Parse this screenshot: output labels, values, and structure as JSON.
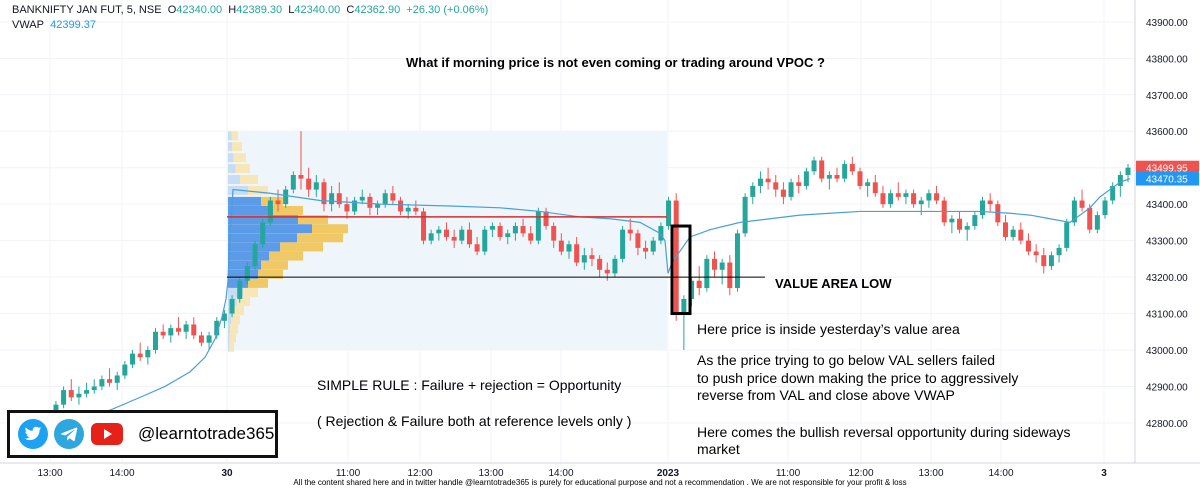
{
  "header": {
    "symbol": "BANKNIFTY JAN FUT, 5, NSE",
    "o_label": "O",
    "o_value": "42340.00",
    "h_label": "H",
    "h_value": "42389.30",
    "l_label": "L",
    "l_value": "42340.00",
    "c_label": "C",
    "c_value": "42362.90",
    "change": "+26.30 (+0.06%)",
    "vwap_label": "VWAP",
    "vwap_value": "42399.37"
  },
  "annotations": {
    "question": "What if morning price is not even coming or trading around VPOC ?",
    "val_label": "VALUE AREA LOW",
    "inside_text": "Here price is inside yesterday’s value area",
    "explain_line1": "As the price trying to go below VAL sellers failed",
    "explain_line2": "to push price down making the price to aggressively",
    "explain_line3": "reverse from VAL and close above VWAP",
    "bullish_line1": "Here comes the bullish reversal opportunity during sideways",
    "bullish_line2": "market",
    "rule": "SIMPLE RULE : Failure + rejection = Opportunity",
    "rule_note": "( Rejection & Failure both at reference levels only )"
  },
  "social": {
    "handle": "@learntotrade365",
    "icons": [
      "twitter-icon",
      "telegram-icon",
      "youtube-icon"
    ]
  },
  "footer": "All the content shared here and in twitter handle @learntotrade365 is purely for educational purpose and not a recommendation . We are not responsible for your profit & loss",
  "colors": {
    "up": "#26a69a",
    "down": "#ef5350",
    "vwap": "#4a9fd8",
    "val_line": "#000000",
    "vah_line": "#d32f2f",
    "profile_blue": "#5b9be8",
    "profile_yellow": "#f0c965",
    "value_area_bg": "#eef6fb",
    "last_price_tag": "#ef5350",
    "vwap_price_tag": "#2196f3"
  },
  "chart_data": {
    "type": "candlestick",
    "title": "",
    "ylim": [
      42690,
      43960
    ],
    "y_ticks": [
      "43900.00",
      "43800.00",
      "43700.00",
      "43600.00",
      "43500.00",
      "43400.00",
      "43300.00",
      "43200.00",
      "43100.00",
      "43000.00",
      "42900.00",
      "42800.00"
    ],
    "x_ticks": [
      "13:00",
      "14:00",
      "30",
      "11:00",
      "12:00",
      "13:00",
      "14:00",
      "2023",
      "11:00",
      "12:00",
      "13:00",
      "14:00",
      "3"
    ],
    "price_tags": [
      {
        "label": "43499.95",
        "value": 43499.95,
        "kind": "last"
      },
      {
        "label": "43470.35",
        "value": 43470.35,
        "kind": "vwap"
      }
    ],
    "levels": {
      "value_area_low": 43200,
      "value_area_high": 43365
    },
    "vwap": [
      42780,
      42780,
      42810,
      42835,
      42870,
      42900,
      42940,
      42980,
      43030,
      43090,
      43140,
      43190,
      43260,
      43440,
      43430,
      43410,
      43400,
      43395,
      43390,
      43380,
      43365,
      43360,
      43350,
      43320,
      43300,
      43210,
      43240,
      43310,
      43330,
      43350,
      43360,
      43370,
      43375,
      43380,
      43380,
      43380,
      43380,
      43375,
      43370,
      43360,
      43350,
      43390,
      43420,
      43440,
      43460,
      43470
    ],
    "vwap_x": [
      10,
      40,
      75,
      110,
      140,
      165,
      190,
      205,
      215,
      222,
      226,
      228,
      229,
      233,
      270,
      320,
      380,
      450,
      500,
      540,
      580,
      610,
      640,
      660,
      665,
      668,
      672,
      690,
      710,
      740,
      770,
      800,
      830,
      860,
      900,
      940,
      980,
      1010,
      1030,
      1050,
      1070,
      1090,
      1100,
      1110,
      1120,
      1130
    ],
    "candles": [
      [
        42790,
        42800,
        42750,
        42760
      ],
      [
        42760,
        42780,
        42740,
        42770
      ],
      [
        42770,
        42800,
        42760,
        42790
      ],
      [
        42790,
        42810,
        42770,
        42780
      ],
      [
        42780,
        42810,
        42760,
        42800
      ],
      [
        42800,
        42830,
        42790,
        42820
      ],
      [
        42820,
        42860,
        42810,
        42850
      ],
      [
        42850,
        42900,
        42840,
        42890
      ],
      [
        42890,
        42920,
        42860,
        42870
      ],
      [
        42870,
        42900,
        42850,
        42880
      ],
      [
        42880,
        42910,
        42870,
        42890
      ],
      [
        42890,
        42920,
        42880,
        42900
      ],
      [
        42900,
        42930,
        42890,
        42920
      ],
      [
        42920,
        42950,
        42900,
        42910
      ],
      [
        42910,
        42940,
        42890,
        42930
      ],
      [
        42930,
        42970,
        42920,
        42960
      ],
      [
        42960,
        43000,
        42950,
        42990
      ],
      [
        42990,
        43020,
        42970,
        42980
      ],
      [
        42980,
        43010,
        42960,
        43000
      ],
      [
        43000,
        43060,
        42990,
        43050
      ],
      [
        43050,
        43070,
        43030,
        43040
      ],
      [
        43040,
        43070,
        43020,
        43060
      ],
      [
        43060,
        43090,
        43040,
        43050
      ],
      [
        43050,
        43080,
        43030,
        43070
      ],
      [
        43070,
        43090,
        43030,
        43040
      ],
      [
        43040,
        43050,
        43010,
        43020
      ],
      [
        43020,
        43050,
        43000,
        43040
      ],
      [
        43040,
        43090,
        43030,
        43080
      ],
      [
        43080,
        43110,
        43060,
        43100
      ],
      [
        43100,
        43150,
        43090,
        43140
      ],
      [
        43140,
        43200,
        43130,
        43190
      ],
      [
        43190,
        43240,
        43180,
        43230
      ],
      [
        43230,
        43300,
        43220,
        43290
      ],
      [
        43290,
        43360,
        43280,
        43350
      ],
      [
        43350,
        43420,
        43340,
        43410
      ],
      [
        43410,
        43440,
        43380,
        43400
      ],
      [
        43400,
        43450,
        43390,
        43440
      ],
      [
        43440,
        43490,
        43430,
        43480
      ],
      [
        43480,
        43600,
        43440,
        43470
      ],
      [
        43470,
        43500,
        43420,
        43440
      ],
      [
        43440,
        43480,
        43420,
        43460
      ],
      [
        43460,
        43470,
        43380,
        43400
      ],
      [
        43400,
        43450,
        43380,
        43430
      ],
      [
        43430,
        43460,
        43390,
        43400
      ],
      [
        43400,
        43420,
        43360,
        43380
      ],
      [
        43380,
        43420,
        43370,
        43410
      ],
      [
        43410,
        43440,
        43400,
        43420
      ],
      [
        43420,
        43430,
        43370,
        43390
      ],
      [
        43390,
        43410,
        43370,
        43400
      ],
      [
        43400,
        43440,
        43390,
        43430
      ],
      [
        43430,
        43450,
        43400,
        43410
      ],
      [
        43410,
        43420,
        43370,
        43380
      ],
      [
        43380,
        43400,
        43360,
        43390
      ],
      [
        43390,
        43410,
        43370,
        43380
      ],
      [
        43380,
        43390,
        43290,
        43300
      ],
      [
        43300,
        43330,
        43290,
        43320
      ],
      [
        43320,
        43340,
        43300,
        43330
      ],
      [
        43330,
        43350,
        43300,
        43310
      ],
      [
        43310,
        43330,
        43280,
        43300
      ],
      [
        43300,
        43340,
        43290,
        43330
      ],
      [
        43330,
        43350,
        43280,
        43290
      ],
      [
        43290,
        43310,
        43260,
        43270
      ],
      [
        43270,
        43340,
        43260,
        43330
      ],
      [
        43330,
        43350,
        43310,
        43340
      ],
      [
        43340,
        43350,
        43300,
        43310
      ],
      [
        43310,
        43330,
        43290,
        43320
      ],
      [
        43320,
        43350,
        43300,
        43340
      ],
      [
        43340,
        43360,
        43310,
        43320
      ],
      [
        43320,
        43340,
        43290,
        43300
      ],
      [
        43300,
        43390,
        43290,
        43380
      ],
      [
        43380,
        43390,
        43330,
        43340
      ],
      [
        43340,
        43350,
        43280,
        43300
      ],
      [
        43300,
        43320,
        43260,
        43270
      ],
      [
        43270,
        43300,
        43250,
        43290
      ],
      [
        43290,
        43310,
        43230,
        43240
      ],
      [
        43240,
        43280,
        43220,
        43260
      ],
      [
        43260,
        43280,
        43230,
        43250
      ],
      [
        43250,
        43260,
        43200,
        43220
      ],
      [
        43220,
        43240,
        43190,
        43210
      ],
      [
        43210,
        43260,
        43200,
        43250
      ],
      [
        43250,
        43340,
        43240,
        43330
      ],
      [
        43330,
        43360,
        43300,
        43320
      ],
      [
        43320,
        43330,
        43260,
        43280
      ],
      [
        43280,
        43300,
        43250,
        43270
      ],
      [
        43270,
        43310,
        43260,
        43300
      ],
      [
        43300,
        43350,
        43290,
        43340
      ],
      [
        43340,
        43420,
        43330,
        43410
      ],
      [
        43410,
        43430,
        43080,
        43100
      ],
      [
        43100,
        43150,
        43000,
        43140
      ],
      [
        43140,
        43200,
        43120,
        43190
      ],
      [
        43190,
        43230,
        43150,
        43170
      ],
      [
        43170,
        43260,
        43160,
        43250
      ],
      [
        43250,
        43270,
        43200,
        43220
      ],
      [
        43220,
        43250,
        43180,
        43240
      ],
      [
        43240,
        43260,
        43150,
        43170
      ],
      [
        43170,
        43330,
        43160,
        43320
      ],
      [
        43320,
        43430,
        43310,
        43420
      ],
      [
        43420,
        43460,
        43400,
        43450
      ],
      [
        43450,
        43490,
        43430,
        43470
      ],
      [
        43470,
        43500,
        43440,
        43460
      ],
      [
        43460,
        43480,
        43420,
        43440
      ],
      [
        43440,
        43460,
        43400,
        43420
      ],
      [
        43420,
        43470,
        43410,
        43460
      ],
      [
        43460,
        43480,
        43430,
        43450
      ],
      [
        43450,
        43500,
        43440,
        43490
      ],
      [
        43490,
        43530,
        43480,
        43520
      ],
      [
        43520,
        43530,
        43460,
        43470
      ],
      [
        43470,
        43490,
        43440,
        43480
      ],
      [
        43480,
        43500,
        43460,
        43470
      ],
      [
        43470,
        43520,
        43460,
        43510
      ],
      [
        43510,
        43530,
        43480,
        43490
      ],
      [
        43490,
        43500,
        43440,
        43450
      ],
      [
        43450,
        43470,
        43420,
        43460
      ],
      [
        43460,
        43480,
        43420,
        43430
      ],
      [
        43430,
        43450,
        43390,
        43400
      ],
      [
        43400,
        43440,
        43390,
        43430
      ],
      [
        43430,
        43460,
        43410,
        43420
      ],
      [
        43420,
        43440,
        43400,
        43430
      ],
      [
        43430,
        43440,
        43390,
        43400
      ],
      [
        43400,
        43420,
        43370,
        43410
      ],
      [
        43410,
        43440,
        43390,
        43430
      ],
      [
        43430,
        43450,
        43400,
        43410
      ],
      [
        43410,
        43420,
        43340,
        43350
      ],
      [
        43350,
        43370,
        43320,
        43360
      ],
      [
        43360,
        43380,
        43320,
        43330
      ],
      [
        43330,
        43350,
        43300,
        43340
      ],
      [
        43340,
        43380,
        43330,
        43370
      ],
      [
        43370,
        43420,
        43360,
        43410
      ],
      [
        43410,
        43430,
        43380,
        43400
      ],
      [
        43400,
        43410,
        43340,
        43350
      ],
      [
        43350,
        43370,
        43300,
        43310
      ],
      [
        43310,
        43340,
        43300,
        43330
      ],
      [
        43330,
        43350,
        43290,
        43300
      ],
      [
        43300,
        43320,
        43260,
        43270
      ],
      [
        43270,
        43290,
        43240,
        43260
      ],
      [
        43260,
        43280,
        43210,
        43230
      ],
      [
        43230,
        43270,
        43220,
        43260
      ],
      [
        43260,
        43290,
        43240,
        43280
      ],
      [
        43280,
        43360,
        43270,
        43350
      ],
      [
        43350,
        43420,
        43340,
        43410
      ],
      [
        43410,
        43440,
        43380,
        43390
      ],
      [
        43390,
        43400,
        43320,
        43330
      ],
      [
        43330,
        43380,
        43320,
        43370
      ],
      [
        43370,
        43420,
        43360,
        43410
      ],
      [
        43410,
        43460,
        43400,
        43450
      ],
      [
        43450,
        43490,
        43420,
        43480
      ],
      [
        43480,
        43510,
        43460,
        43500
      ]
    ]
  }
}
